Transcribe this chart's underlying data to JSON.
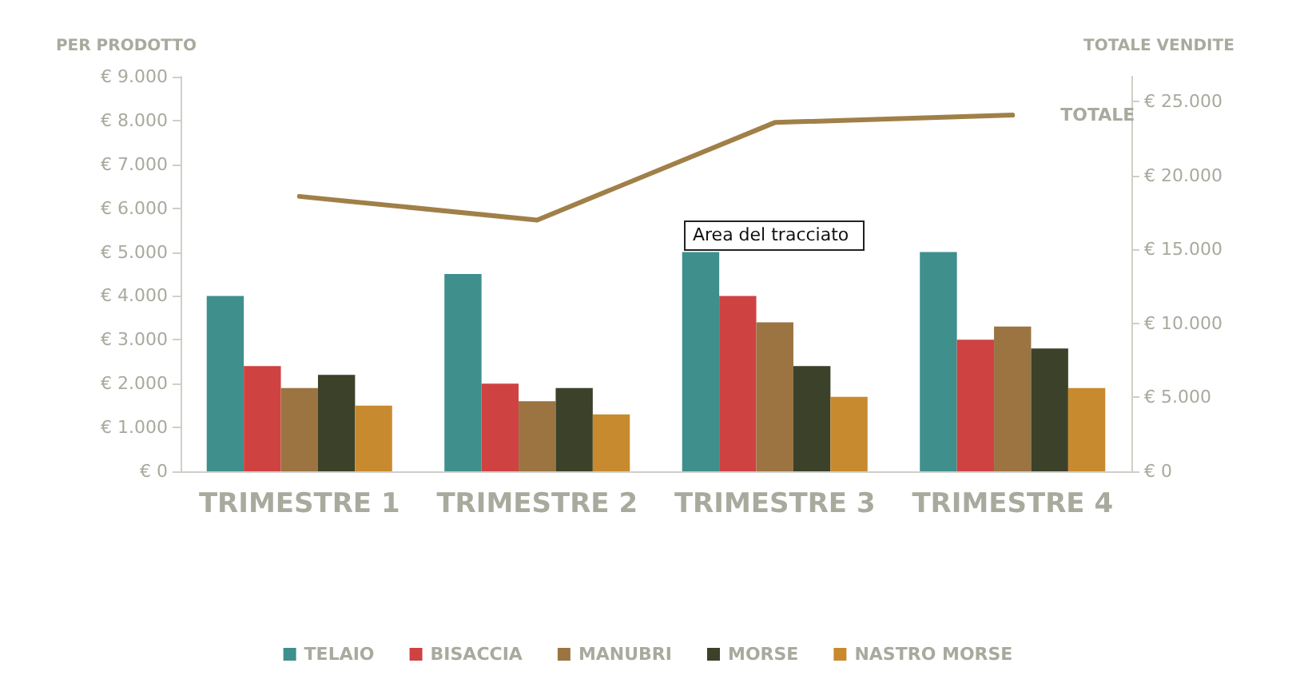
{
  "chart_data": {
    "type": "bar",
    "ylabel": "PER PRODOTTO",
    "y2label": "TOTALE VENDITE",
    "categories": [
      "TRIMESTRE 1",
      "TRIMESTRE 2",
      "TRIMESTRE 3",
      "TRIMESTRE 4"
    ],
    "series": [
      {
        "name": "TELAIO",
        "color": "#3f8f8c",
        "values": [
          4000,
          4500,
          5000,
          5000
        ]
      },
      {
        "name": "BISACCIA",
        "color": "#cf4242",
        "values": [
          2400,
          2000,
          4000,
          3000
        ]
      },
      {
        "name": "MANUBRI",
        "color": "#9b7442",
        "values": [
          1900,
          1600,
          3400,
          3300
        ]
      },
      {
        "name": "MORSE",
        "color": "#3c4129",
        "values": [
          2200,
          1900,
          2400,
          2800
        ]
      },
      {
        "name": "NASTRO MORSE",
        "color": "#c88a2e",
        "values": [
          1500,
          1300,
          1700,
          1900
        ]
      },
      {
        "name": "TOTALE",
        "type": "line",
        "axis": "y2",
        "color": "#a08048",
        "values": [
          18600,
          17000,
          23600,
          24100
        ]
      }
    ],
    "ylim": [
      0,
      9000
    ],
    "yticks": [
      {
        "value": 0,
        "label": "€ 0"
      },
      {
        "value": 1000,
        "label": "€ 1.000"
      },
      {
        "value": 2000,
        "label": "€ 2.000"
      },
      {
        "value": 3000,
        "label": "€ 3.000"
      },
      {
        "value": 4000,
        "label": "€ 4.000"
      },
      {
        "value": 5000,
        "label": "€ 5.000"
      },
      {
        "value": 6000,
        "label": "€ 6.000"
      },
      {
        "value": 7000,
        "label": "€ 7.000"
      },
      {
        "value": 8000,
        "label": "€ 8.000"
      },
      {
        "value": 9000,
        "label": "€ 9.000"
      }
    ],
    "y2lim": [
      0,
      26700
    ],
    "y2ticks": [
      {
        "value": 0,
        "label": "€ 0"
      },
      {
        "value": 5000,
        "label": "€ 5.000"
      },
      {
        "value": 10000,
        "label": "€ 10.000"
      },
      {
        "value": 15000,
        "label": "€ 15.000"
      },
      {
        "value": 20000,
        "label": "€ 20.000"
      },
      {
        "value": 25000,
        "label": "€ 25.000"
      }
    ],
    "annotations": [
      "Area del tracciato"
    ],
    "legend": "bottom",
    "grid": false,
    "marker": "none",
    "line_style": "solid"
  }
}
